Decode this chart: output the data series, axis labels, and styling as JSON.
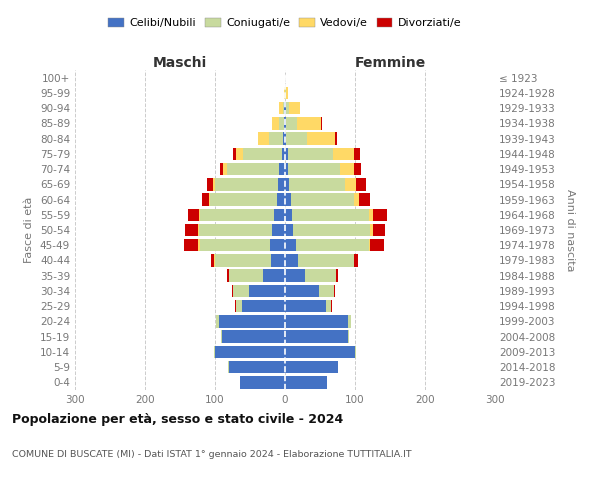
{
  "age_groups": [
    "0-4",
    "5-9",
    "10-14",
    "15-19",
    "20-24",
    "25-29",
    "30-34",
    "35-39",
    "40-44",
    "45-49",
    "50-54",
    "55-59",
    "60-64",
    "65-69",
    "70-74",
    "75-79",
    "80-84",
    "85-89",
    "90-94",
    "95-99",
    "100+"
  ],
  "birth_years": [
    "2019-2023",
    "2014-2018",
    "2009-2013",
    "2004-2008",
    "1999-2003",
    "1994-1998",
    "1989-1993",
    "1984-1988",
    "1979-1983",
    "1974-1978",
    "1969-1973",
    "1964-1968",
    "1959-1963",
    "1954-1958",
    "1949-1953",
    "1944-1948",
    "1939-1943",
    "1934-1938",
    "1929-1933",
    "1924-1928",
    "≤ 1923"
  ],
  "colors": {
    "celibe": "#4472c4",
    "coniugato": "#c8da9e",
    "vedovo": "#ffd966",
    "divorziato": "#cc0000"
  },
  "male_celibe": [
    65,
    80,
    100,
    90,
    95,
    62,
    52,
    32,
    20,
    22,
    18,
    16,
    12,
    10,
    8,
    5,
    3,
    1,
    1,
    0,
    0
  ],
  "male_coniugato": [
    0,
    1,
    2,
    2,
    4,
    8,
    22,
    48,
    80,
    100,
    105,
    105,
    95,
    90,
    75,
    55,
    20,
    8,
    2,
    0,
    0
  ],
  "male_vedovo": [
    0,
    0,
    0,
    0,
    0,
    0,
    0,
    0,
    1,
    2,
    2,
    2,
    2,
    3,
    5,
    10,
    15,
    10,
    5,
    1,
    0
  ],
  "male_divorziato": [
    0,
    0,
    0,
    0,
    0,
    1,
    2,
    3,
    5,
    20,
    18,
    15,
    10,
    8,
    5,
    5,
    1,
    0,
    0,
    0,
    0
  ],
  "female_celibe": [
    60,
    75,
    100,
    90,
    90,
    58,
    48,
    28,
    18,
    15,
    12,
    10,
    8,
    6,
    4,
    4,
    2,
    2,
    1,
    0,
    0
  ],
  "female_coniugato": [
    0,
    1,
    2,
    2,
    4,
    8,
    22,
    45,
    80,
    105,
    110,
    110,
    90,
    80,
    75,
    65,
    30,
    15,
    5,
    2,
    0
  ],
  "female_vedovo": [
    0,
    0,
    0,
    0,
    0,
    0,
    0,
    0,
    1,
    2,
    3,
    5,
    8,
    15,
    20,
    30,
    40,
    35,
    15,
    2,
    0
  ],
  "female_divorziato": [
    0,
    0,
    0,
    0,
    0,
    1,
    2,
    3,
    5,
    20,
    18,
    20,
    15,
    15,
    10,
    8,
    2,
    1,
    0,
    0,
    0
  ],
  "title": "Popolazione per età, sesso e stato civile - 2024",
  "subtitle": "COMUNE DI BUSCATE (MI) - Dati ISTAT 1° gennaio 2024 - Elaborazione TUTTITALIA.IT",
  "xlabel_left": "Maschi",
  "xlabel_right": "Femmine",
  "ylabel_left": "Fasce di età",
  "ylabel_right": "Anni di nascita",
  "xlim": 300,
  "legend_labels": [
    "Celibi/Nubili",
    "Coniugati/e",
    "Vedovi/e",
    "Divorziati/e"
  ],
  "bg_color": "#ffffff",
  "grid_color": "#cccccc",
  "tick_color": "#777777"
}
